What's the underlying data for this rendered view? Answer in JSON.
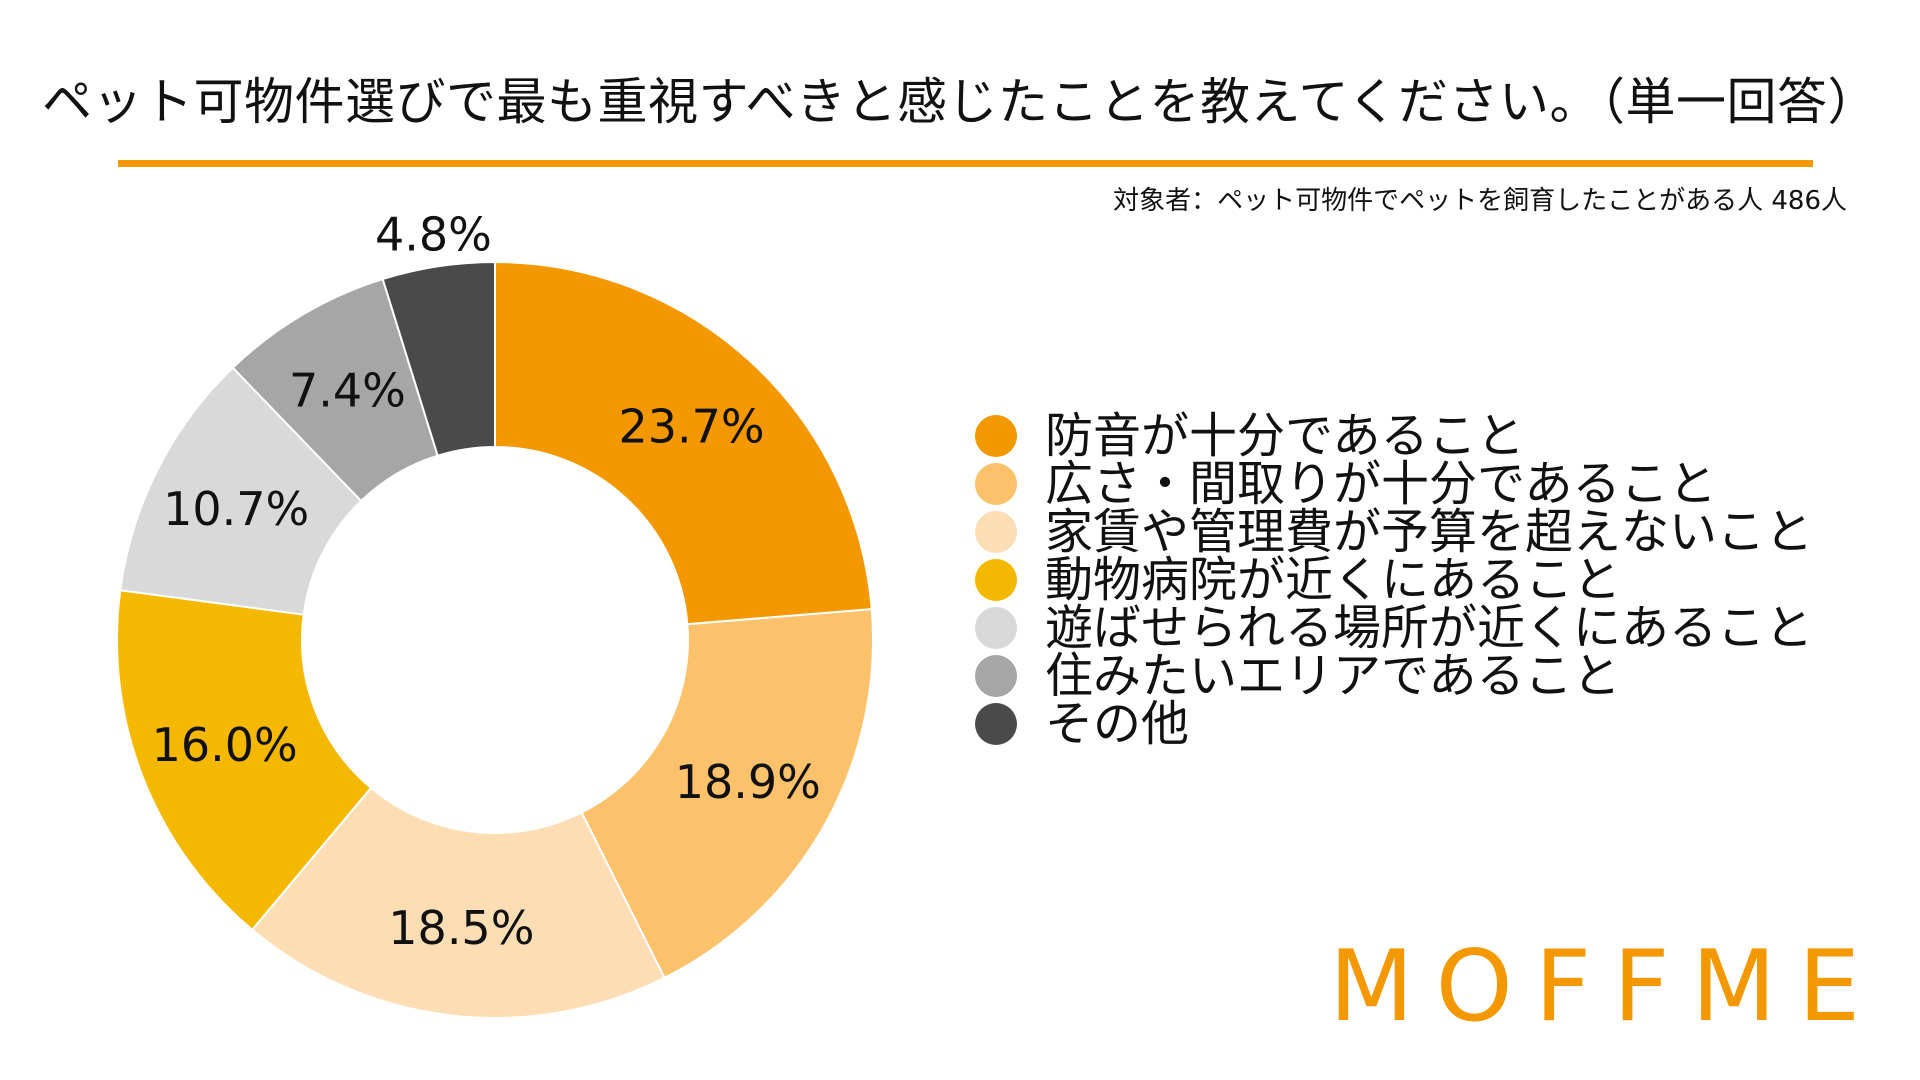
{
  "title": "ペット可物件選びで最も重視すべきと感じたことを教えてください。（単一回答）",
  "subtitle": "対象者：ペット可物件でペットを飼育したことがある人 486人",
  "logo_text": "MOFFME",
  "colors": {
    "accent": "#F39800",
    "logo": "#F39800",
    "text": "#111111",
    "slice_border": "#FFFFFF"
  },
  "chart_data": {
    "type": "pie",
    "donut": true,
    "value_unit": "%",
    "legend_position": "right",
    "labels": [
      "防音が十分であること",
      "広さ・間取りが十分であること",
      "家賃や管理費が予算を超えないこと",
      "動物病院が近くにあること",
      "遊ばせられる場所が近くにあること",
      "住みたいエリアであること",
      "その他"
    ],
    "values": [
      23.7,
      18.9,
      18.5,
      16.0,
      10.7,
      7.4,
      4.8
    ],
    "data_labels": [
      "23.7%",
      "18.9%",
      "18.5%",
      "16.0%",
      "10.7%",
      "7.4%",
      "4.8%"
    ],
    "colors": [
      "#F39800",
      "#FBC26B",
      "#FDDDB4",
      "#F5B800",
      "#D9D9D9",
      "#A6A6A6",
      "#4A4A4A"
    ]
  }
}
